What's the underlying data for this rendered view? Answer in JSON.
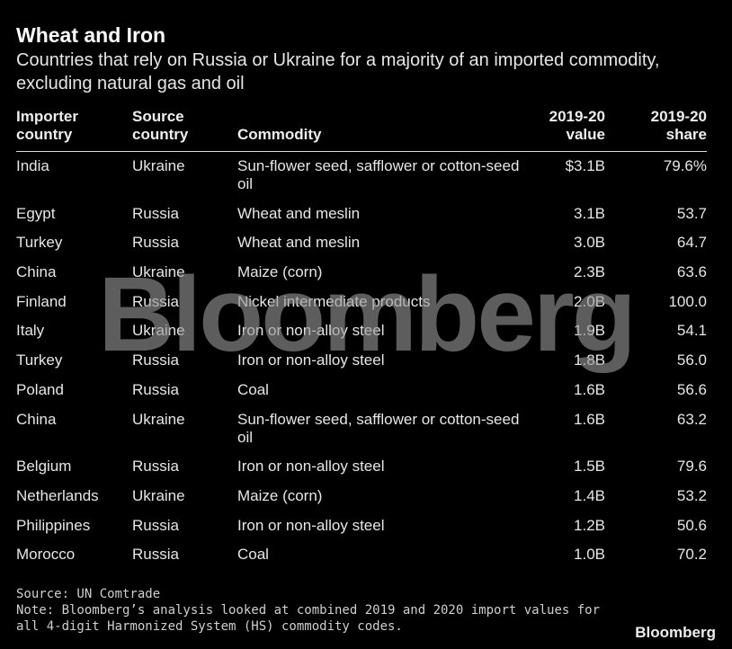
{
  "header": {
    "title": "Wheat and Iron",
    "subtitle": "Countries that rely on Russia or Ukraine for a majority of an imported commodity, excluding natural gas and oil"
  },
  "table": {
    "headers": [
      [
        "Importer",
        "country"
      ],
      [
        "Source",
        "country"
      ],
      [
        "Commodity"
      ],
      [
        "2019-20",
        "value"
      ],
      [
        "2019-20",
        "share"
      ]
    ],
    "rows": [
      [
        "India",
        "Ukraine",
        "Sun-flower seed, safflower or cotton-seed oil",
        "$3.1B",
        "79.6%"
      ],
      [
        "Egypt",
        "Russia",
        "Wheat and meslin",
        "3.1B",
        "53.7"
      ],
      [
        "Turkey",
        "Russia",
        "Wheat and meslin",
        "3.0B",
        "64.7"
      ],
      [
        "China",
        "Ukraine",
        "Maize (corn)",
        "2.3B",
        "63.6"
      ],
      [
        "Finland",
        "Russia",
        "Nickel intermediate products",
        "2.0B",
        "100.0"
      ],
      [
        "Italy",
        "Ukraine",
        "Iron or non-alloy steel",
        "1.9B",
        "54.1"
      ],
      [
        "Turkey",
        "Russia",
        "Iron or non-alloy steel",
        "1.8B",
        "56.0"
      ],
      [
        "Poland",
        "Russia",
        "Coal",
        "1.6B",
        "56.6"
      ],
      [
        "China",
        "Ukraine",
        "Sun-flower seed, safflower or cotton-seed oil",
        "1.6B",
        "63.2"
      ],
      [
        "Belgium",
        "Russia",
        "Iron or non-alloy steel",
        "1.5B",
        "79.6"
      ],
      [
        "Netherlands",
        "Ukraine",
        "Maize (corn)",
        "1.4B",
        "53.2"
      ],
      [
        "Philippines",
        "Russia",
        "Iron or non-alloy steel",
        "1.2B",
        "50.6"
      ],
      [
        "Morocco",
        "Russia",
        "Coal",
        "1.0B",
        "70.2"
      ]
    ]
  },
  "watermark": "Bloomberg",
  "footer": {
    "source": "Source: UN Comtrade",
    "note": "Note: Bloomberg’s analysis looked at combined 2019 and 2020 import values for all 4-digit Harmonized System (HS) commodity codes.",
    "logo": "Bloomberg"
  }
}
